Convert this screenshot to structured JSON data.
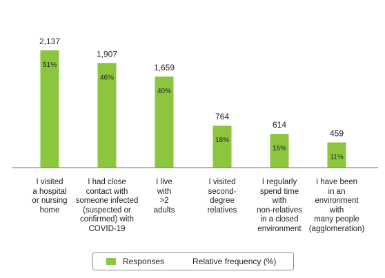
{
  "chart_data": {
    "type": "bar",
    "categories": [
      "I visited\na hospital\nor nursing\nhome",
      "I had close\ncontact with\nsomeone infected\n(suspected or\nconfirmed) with\nCOVID-19",
      "I live\nwith\n>2\nadults",
      "I visited\nsecond-\ndegree\nrelatives",
      "I regularly\nspend time\nwith\nnon-relatives\nin a closed\nenvironment",
      "I have been\nin an\nenvironment\nwith\nmany people\n(agglomeration)"
    ],
    "values": [
      2137,
      1907,
      1659,
      764,
      614,
      459
    ],
    "value_labels": [
      "2,137",
      "1,907",
      "1,659",
      "764",
      "614",
      "459"
    ],
    "relative_frequency_labels": [
      "51%",
      "46%",
      "40%",
      "18%",
      "15%",
      "11%"
    ],
    "relative_frequency": [
      51,
      46,
      40,
      18,
      15,
      11
    ],
    "ylim": [
      0,
      2300
    ],
    "grid": false,
    "bar_color": "#8cc63f",
    "legend": {
      "position": "bottom",
      "entries": [
        "Responses",
        "Relative frequency (%)"
      ]
    }
  }
}
